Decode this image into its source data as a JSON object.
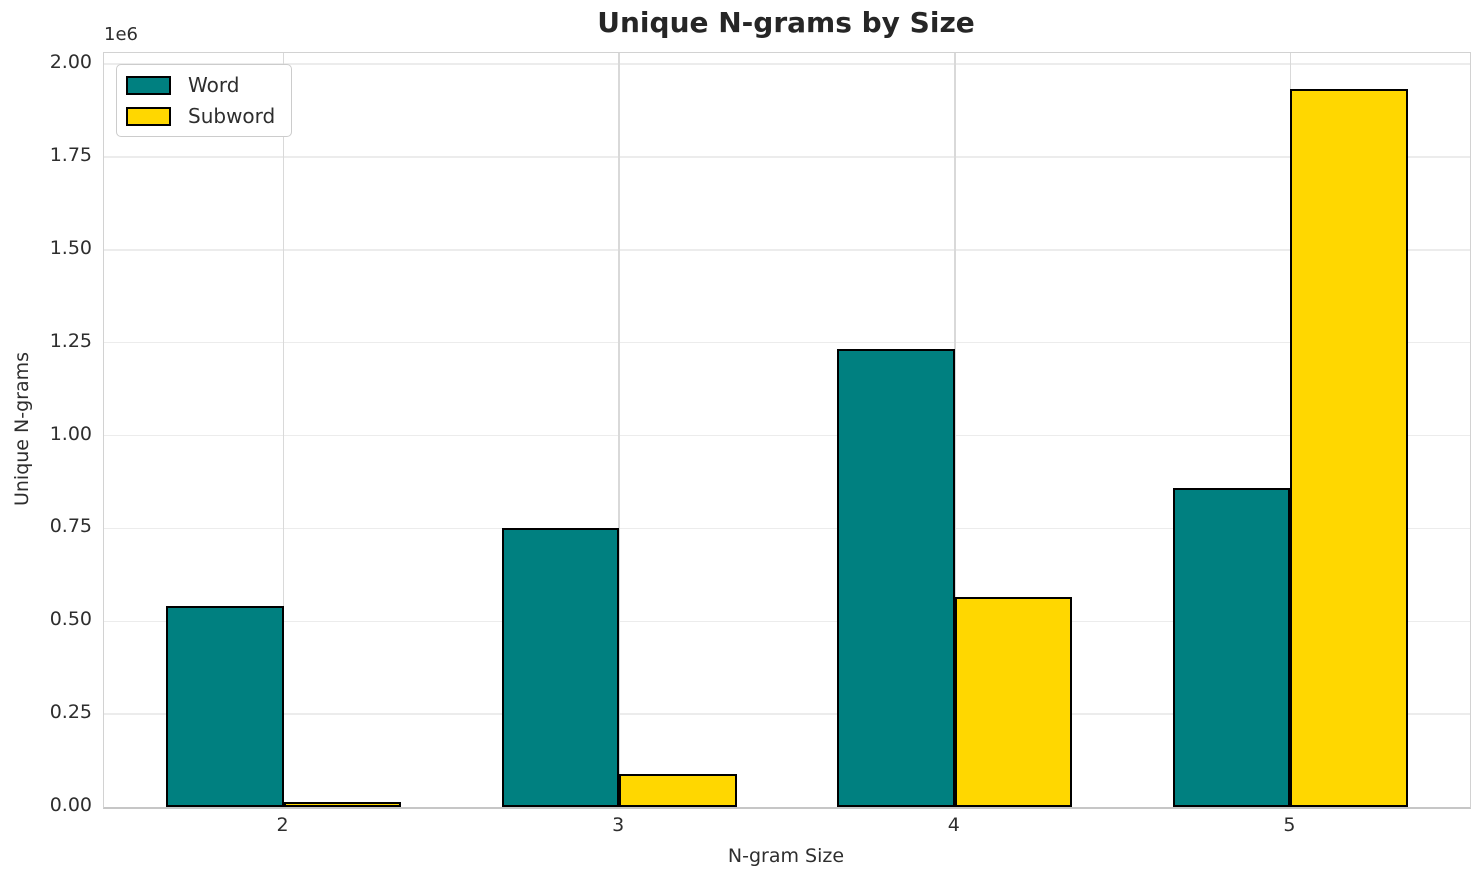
{
  "title": "Unique N-grams by Size",
  "chart_data": {
    "type": "bar",
    "title": "Unique N-grams by Size",
    "xlabel": "N-gram Size",
    "ylabel": "Unique N-grams",
    "offset_label": "1e6",
    "categories": [
      "2",
      "3",
      "4",
      "5"
    ],
    "series": [
      {
        "name": "Word",
        "color": "#008080",
        "values": [
          541000,
          752000,
          1234000,
          859000
        ]
      },
      {
        "name": "Subword",
        "color": "#FFD700",
        "values": [
          13000,
          89000,
          565000,
          1934000
        ]
      }
    ],
    "bar_edge_color": "#000000",
    "ylim": [
      0,
      2030000
    ],
    "yticks": [
      0,
      250000,
      500000,
      750000,
      1000000,
      1250000,
      1500000,
      1750000,
      2000000
    ],
    "ytick_labels": [
      "0.00",
      "0.25",
      "0.50",
      "0.75",
      "1.00",
      "1.25",
      "1.50",
      "1.75",
      "2.00"
    ],
    "grid": true,
    "legend_position": "upper-left"
  }
}
